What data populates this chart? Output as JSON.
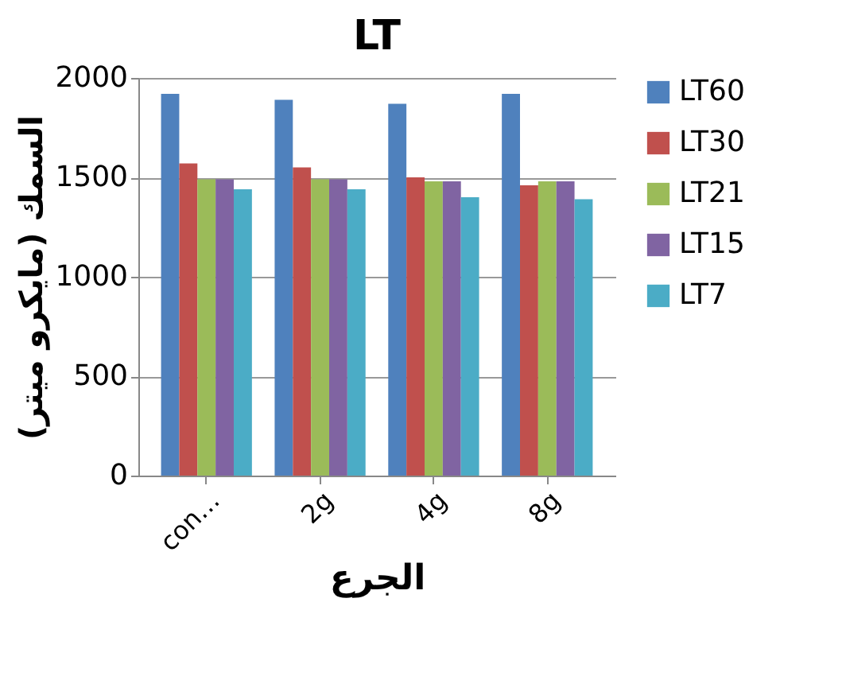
{
  "chart_data": {
    "type": "bar",
    "title": "LT",
    "xlabel": "الجرع",
    "ylabel": "السمك (مايكرو ميتر)",
    "categories": [
      "con…",
      "2g",
      "4g",
      "8g"
    ],
    "series": [
      {
        "name": "LT60",
        "color": "#4f81bd",
        "values": [
          1920,
          1890,
          1870,
          1920
        ]
      },
      {
        "name": "LT30",
        "color": "#c0504d",
        "values": [
          1570,
          1550,
          1500,
          1460
        ]
      },
      {
        "name": "LT21",
        "color": "#9bbb59",
        "values": [
          1490,
          1490,
          1480,
          1480
        ]
      },
      {
        "name": "LT15",
        "color": "#8064a2",
        "values": [
          1490,
          1490,
          1480,
          1480
        ]
      },
      {
        "name": "LT7",
        "color": "#4bacc6",
        "values": [
          1440,
          1440,
          1400,
          1390
        ]
      }
    ],
    "ylim": [
      0,
      2000
    ],
    "yticks": [
      0,
      500,
      1000,
      1500,
      2000
    ],
    "grid": "y",
    "legend": "right"
  }
}
